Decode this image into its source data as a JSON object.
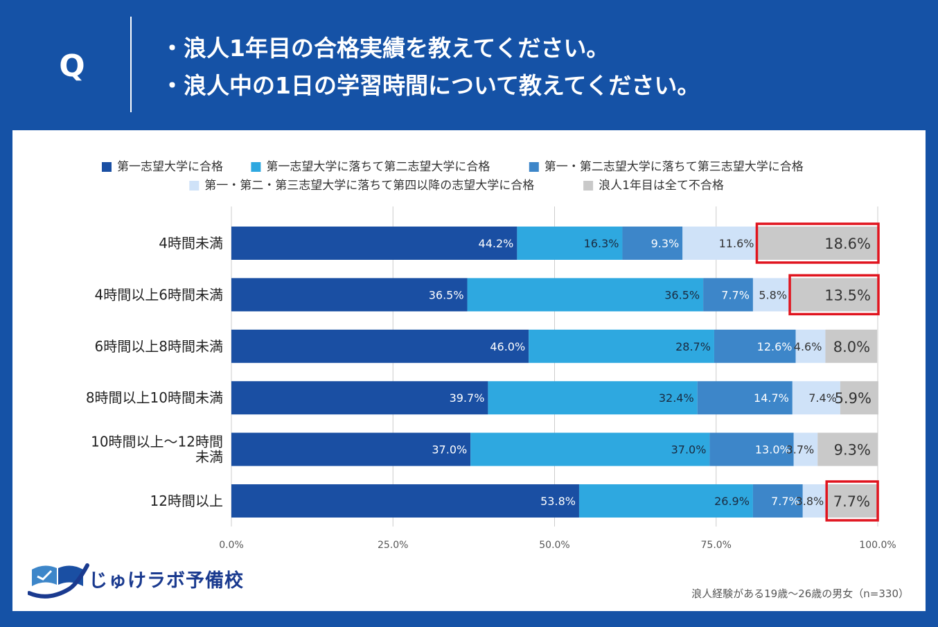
{
  "header": {
    "q_label": "Q",
    "line1": "・浪人1年目の合格実績を教えてください。",
    "line2": "・浪人中の1日の学習時間について教えてください。"
  },
  "brand": {
    "name": "じゅけラボ予備校"
  },
  "footnote": "浪人経験がある19歳～26歳の男女（n=330）",
  "colors": {
    "header_bg": "#1552a6",
    "highlight": "#e0141e",
    "gridline": "#cccccc"
  },
  "chart_data": {
    "type": "bar",
    "orientation": "horizontal",
    "stacked": true,
    "categories": [
      "4時間未満",
      "4時間以上6時間未満",
      "6時間以上8時間未満",
      "8時間以上10時間未満",
      "10時間以上～12時間未満",
      "12時間以上"
    ],
    "category_lines": [
      [
        "4時間未満"
      ],
      [
        "4時間以上6時間未満"
      ],
      [
        "6時間以上8時間未満"
      ],
      [
        "8時間以上10時間未満"
      ],
      [
        "10時間以上～12時間",
        "未満"
      ],
      [
        "12時間以上"
      ]
    ],
    "series": [
      {
        "name": "第一志望大学に合格",
        "color": "#1a4fa3",
        "label_color": "#ffffff",
        "values": [
          44.2,
          36.5,
          46.0,
          39.7,
          37.0,
          53.8
        ]
      },
      {
        "name": "第一志望大学に落ちて第二志望大学に合格",
        "color": "#2ea8e0",
        "label_color": "#1a2a40",
        "values": [
          16.3,
          36.5,
          28.7,
          32.4,
          37.0,
          26.9
        ]
      },
      {
        "name": "第一・第二志望大学に落ちて第三志望大学に合格",
        "color": "#3d86c9",
        "label_color": "#ffffff",
        "values": [
          9.3,
          7.7,
          12.6,
          14.7,
          13.0,
          7.7
        ]
      },
      {
        "name": "第一・第二・第三志望大学に落ちて第四以降の志望大学に合格",
        "color": "#cfe2f8",
        "label_color": "#333333",
        "values": [
          11.6,
          5.8,
          4.6,
          7.4,
          3.7,
          3.8
        ]
      },
      {
        "name": "浪人1年目は全て不合格",
        "color": "#c9c9c9",
        "label_color": "#333333",
        "values": [
          18.6,
          13.5,
          8.0,
          5.9,
          9.3,
          7.7
        ]
      }
    ],
    "x_ticks": [
      "0.0%",
      "25.0%",
      "50.0%",
      "75.0%",
      "100.0%"
    ],
    "xlim": [
      0,
      100
    ],
    "legend_position": "top",
    "highlighted_categories": [
      "4時間未満",
      "4時間以上6時間未満",
      "12時間以上"
    ],
    "highlighted_series": "浪人1年目は全て不合格"
  }
}
